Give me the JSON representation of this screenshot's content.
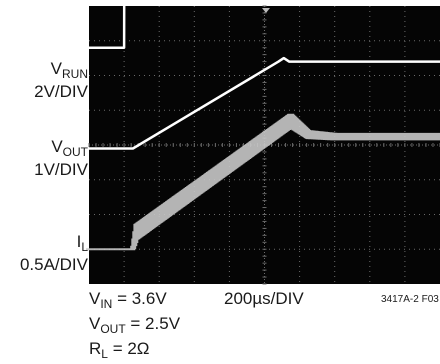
{
  "chart_data": {
    "type": "line",
    "title": "",
    "grid": true,
    "xlim": [
      0,
      2000
    ],
    "x_unit": "µs",
    "time_per_div": "200µs/DIV",
    "channels": [
      {
        "label_main": "V",
        "label_sub": "RUN",
        "scale": "2V/DIV",
        "unit": "V",
        "volts_per_div": 2,
        "baseline_div": 1.2,
        "x": [
          0,
          200,
          201,
          2000
        ],
        "y": [
          0,
          0,
          5,
          5
        ],
        "color": "#ffffff",
        "style": "line"
      },
      {
        "label_main": "V",
        "label_sub": "OUT",
        "scale": "1V/DIV",
        "unit": "V",
        "volts_per_div": 1,
        "baseline_div": 4.1,
        "x": [
          0,
          250,
          1080,
          1110,
          1140,
          1160,
          2000
        ],
        "y": [
          0,
          0,
          2.5,
          2.6,
          2.5,
          2.5,
          2.5
        ],
        "color": "#ffffff",
        "style": "line"
      },
      {
        "label_main": "I",
        "label_sub": "L",
        "scale": "0.5A/DIV",
        "unit": "A",
        "amps_per_div": 0.5,
        "baseline_div": 7.0,
        "x": [
          0,
          250,
          270,
          1150,
          1250,
          1400,
          2000
        ],
        "y": [
          0,
          0,
          0.25,
          1.85,
          1.65,
          1.62,
          1.62
        ],
        "ripple": [
          0,
          0,
          0.2,
          0.18,
          0.1,
          0.08,
          0.08
        ],
        "color": "#c8c8c8",
        "style": "band"
      }
    ],
    "conditions": [
      {
        "main": "V",
        "sub": "IN",
        "rest": " = 3.6V"
      },
      {
        "main": "V",
        "sub": "OUT",
        "rest": " = 2.5V"
      },
      {
        "main": "R",
        "sub": "L",
        "rest": " = 2Ω"
      }
    ],
    "figure_id": "3417A-2 F03"
  },
  "colors": {
    "screen": "#050505",
    "grid": "#6a6a6a",
    "trace": "#ffffff",
    "band": "#c8c8c8"
  }
}
